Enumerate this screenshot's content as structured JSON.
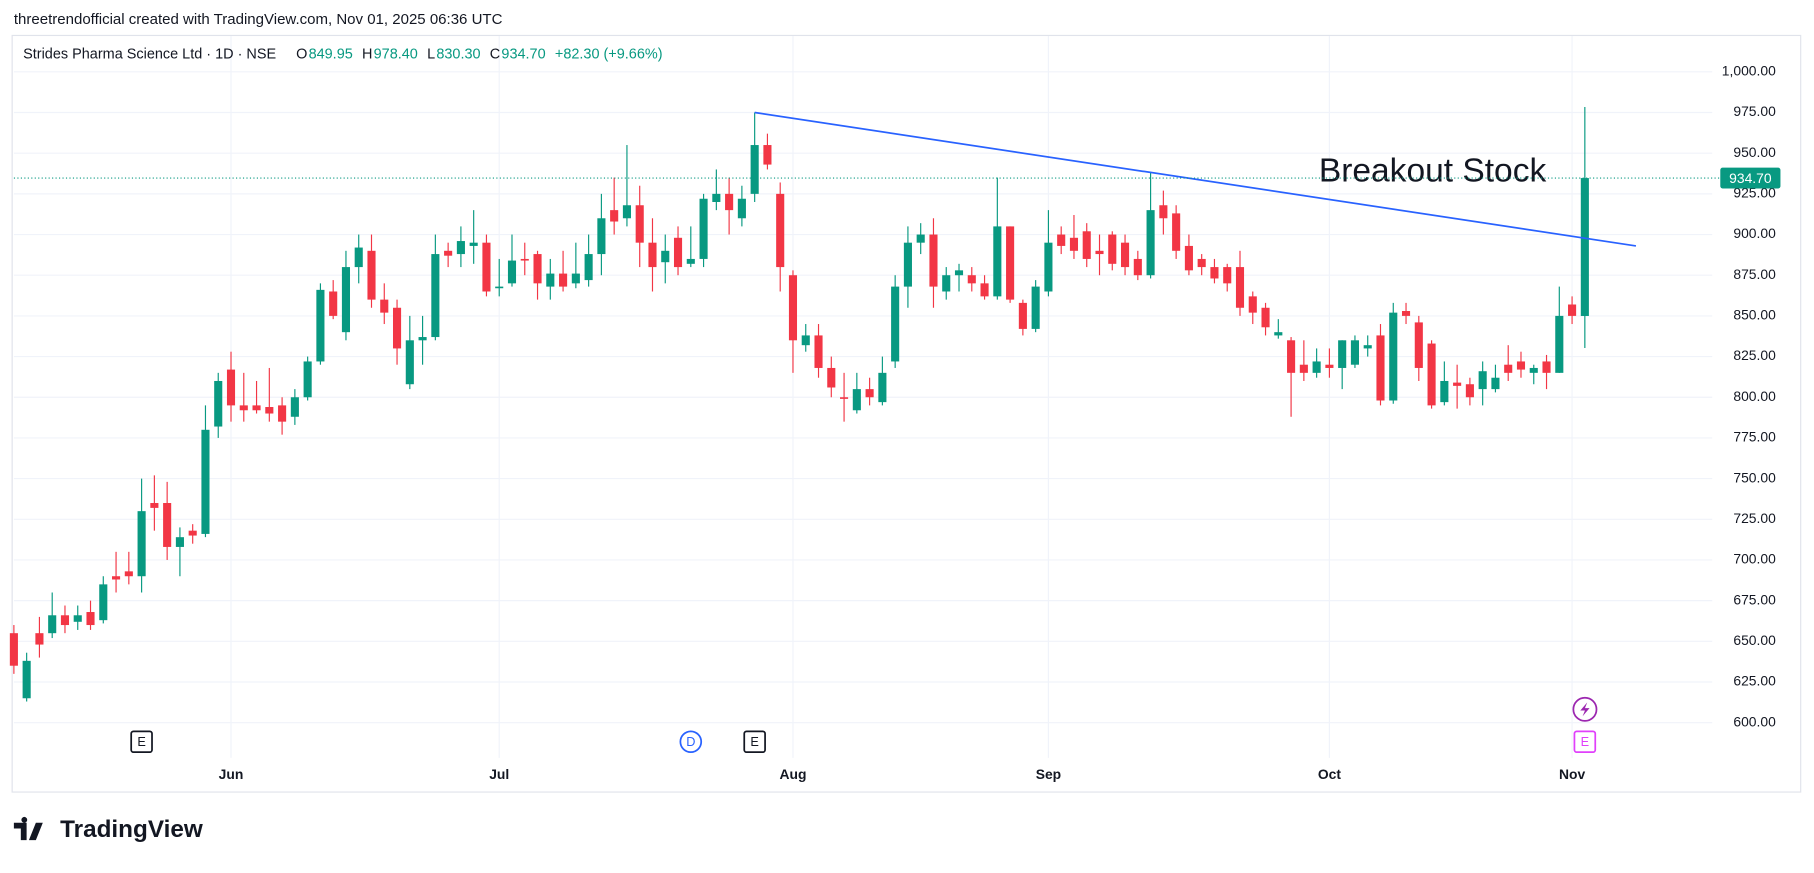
{
  "header": {
    "credit": "threetrendofficial created with TradingView.com, Nov 01, 2025 06:36 UTC",
    "logo": "TradingView"
  },
  "chart_data": {
    "type": "candlestick",
    "symbol": "Strides Pharma Science Ltd · 1D · NSE",
    "ohlc_keys": [
      "O",
      "H",
      "L",
      "C"
    ],
    "ohlc_labels": [
      "849.95",
      "978.40",
      "830.30",
      "934.70"
    ],
    "change_label": "+82.30 (+9.66%)",
    "last_price_label": "934.70",
    "up_color": "#089981",
    "down_color": "#f23645",
    "categories": [
      null,
      null,
      null,
      null,
      null,
      null,
      null,
      null,
      null,
      null,
      null,
      null,
      null,
      null,
      null,
      null,
      null,
      "Jun",
      null,
      null,
      null,
      null,
      null,
      null,
      null,
      null,
      null,
      null,
      null,
      null,
      null,
      null,
      null,
      null,
      null,
      null,
      null,
      null,
      "Jul",
      null,
      null,
      null,
      null,
      null,
      null,
      null,
      null,
      null,
      null,
      null,
      null,
      null,
      null,
      null,
      null,
      null,
      null,
      null,
      null,
      null,
      null,
      "Aug",
      null,
      null,
      null,
      null,
      null,
      null,
      null,
      null,
      null,
      null,
      null,
      null,
      null,
      null,
      null,
      null,
      null,
      null,
      null,
      "Sep",
      null,
      null,
      null,
      null,
      null,
      null,
      null,
      null,
      null,
      null,
      null,
      null,
      null,
      null,
      null,
      null,
      null,
      null,
      null,
      null,
      null,
      "Oct",
      null,
      null,
      null,
      null,
      null,
      null,
      null,
      null,
      null,
      null,
      null,
      null,
      null,
      null,
      null,
      null,
      null,
      null,
      "Nov"
    ],
    "ohlc": [
      [
        655,
        660,
        630,
        635
      ],
      [
        615,
        643,
        613,
        638
      ],
      [
        655,
        665,
        640,
        648
      ],
      [
        655,
        680,
        652,
        666
      ],
      [
        666,
        672,
        655,
        660
      ],
      [
        662,
        672,
        657,
        666
      ],
      [
        668,
        675,
        657,
        660
      ],
      [
        663,
        690,
        661,
        685
      ],
      [
        690,
        705,
        680,
        688
      ],
      [
        693,
        705,
        685,
        690
      ],
      [
        690,
        750,
        680,
        730
      ],
      [
        735,
        752,
        718,
        732
      ],
      [
        735,
        748,
        700,
        708
      ],
      [
        708,
        720,
        690,
        714
      ],
      [
        718,
        722,
        710,
        715
      ],
      [
        716,
        795,
        714,
        780
      ],
      [
        782,
        815,
        775,
        810
      ],
      [
        817,
        828,
        785,
        795
      ],
      [
        795,
        815,
        785,
        792
      ],
      [
        795,
        810,
        790,
        792
      ],
      [
        794,
        818,
        785,
        790
      ],
      [
        795,
        800,
        777,
        785
      ],
      [
        788,
        805,
        783,
        800
      ],
      [
        800,
        825,
        798,
        822
      ],
      [
        822,
        870,
        820,
        866
      ],
      [
        865,
        872,
        848,
        850
      ],
      [
        840,
        890,
        835,
        880
      ],
      [
        880,
        900,
        870,
        892
      ],
      [
        890,
        900,
        855,
        860
      ],
      [
        860,
        870,
        845,
        852
      ],
      [
        855,
        860,
        820,
        830
      ],
      [
        808,
        850,
        805,
        835
      ],
      [
        835,
        850,
        820,
        837
      ],
      [
        837,
        900,
        835,
        888
      ],
      [
        890,
        895,
        880,
        887
      ],
      [
        888,
        905,
        880,
        896
      ],
      [
        893,
        915,
        882,
        895
      ],
      [
        895,
        900,
        862,
        865
      ],
      [
        867,
        885,
        862,
        868
      ],
      [
        870,
        900,
        868,
        884
      ],
      [
        885,
        895,
        875,
        884
      ],
      [
        888,
        890,
        860,
        870
      ],
      [
        868,
        885,
        860,
        876
      ],
      [
        876,
        890,
        865,
        868
      ],
      [
        870,
        895,
        867,
        876
      ],
      [
        872,
        900,
        868,
        888
      ],
      [
        888,
        925,
        875,
        910
      ],
      [
        915,
        935,
        900,
        908
      ],
      [
        910,
        955,
        905,
        918
      ],
      [
        918,
        930,
        880,
        895
      ],
      [
        895,
        910,
        865,
        880
      ],
      [
        883,
        900,
        870,
        890
      ],
      [
        898,
        905,
        875,
        880
      ],
      [
        882,
        905,
        880,
        885
      ],
      [
        885,
        925,
        880,
        922
      ],
      [
        920,
        940,
        915,
        925
      ],
      [
        925,
        935,
        900,
        915
      ],
      [
        910,
        930,
        905,
        922
      ],
      [
        925,
        975,
        920,
        955
      ],
      [
        955,
        962,
        940,
        943
      ],
      [
        925,
        932,
        865,
        880
      ],
      [
        875,
        878,
        815,
        835
      ],
      [
        832,
        845,
        828,
        838
      ],
      [
        838,
        845,
        812,
        818
      ],
      [
        818,
        825,
        800,
        806
      ],
      [
        800,
        815,
        785,
        799
      ],
      [
        792,
        815,
        790,
        805
      ],
      [
        805,
        812,
        795,
        800
      ],
      [
        797,
        825,
        795,
        815
      ],
      [
        822,
        875,
        818,
        868
      ],
      [
        868,
        905,
        855,
        895
      ],
      [
        895,
        907,
        888,
        900
      ],
      [
        900,
        910,
        855,
        868
      ],
      [
        865,
        880,
        860,
        875
      ],
      [
        875,
        882,
        865,
        878
      ],
      [
        875,
        880,
        865,
        870
      ],
      [
        870,
        875,
        860,
        862
      ],
      [
        862,
        935,
        860,
        905
      ],
      [
        905,
        905,
        858,
        860
      ],
      [
        858,
        860,
        838,
        842
      ],
      [
        842,
        872,
        840,
        868
      ],
      [
        865,
        915,
        862,
        895
      ],
      [
        900,
        905,
        888,
        893
      ],
      [
        898,
        912,
        885,
        890
      ],
      [
        902,
        907,
        880,
        885
      ],
      [
        890,
        900,
        875,
        888
      ],
      [
        900,
        902,
        878,
        882
      ],
      [
        895,
        900,
        875,
        880
      ],
      [
        885,
        890,
        872,
        875
      ],
      [
        875,
        938,
        873,
        915
      ],
      [
        918,
        927,
        900,
        910
      ],
      [
        913,
        918,
        885,
        890
      ],
      [
        893,
        900,
        875,
        878
      ],
      [
        885,
        888,
        875,
        880
      ],
      [
        880,
        885,
        870,
        873
      ],
      [
        880,
        882,
        865,
        870
      ],
      [
        880,
        890,
        850,
        855
      ],
      [
        862,
        865,
        845,
        852
      ],
      [
        855,
        858,
        838,
        843
      ],
      [
        838,
        848,
        836,
        840
      ],
      [
        835,
        837,
        788,
        815
      ],
      [
        820,
        835,
        810,
        815
      ],
      [
        815,
        830,
        812,
        822
      ],
      [
        820,
        830,
        812,
        818
      ],
      [
        818,
        835,
        805,
        835
      ],
      [
        820,
        838,
        818,
        835
      ],
      [
        830,
        838,
        825,
        832
      ],
      [
        838,
        845,
        795,
        798
      ],
      [
        798,
        858,
        796,
        852
      ],
      [
        853,
        858,
        845,
        850
      ],
      [
        846,
        850,
        810,
        818
      ],
      [
        833,
        835,
        793,
        795
      ],
      [
        797,
        822,
        795,
        810
      ],
      [
        809,
        820,
        793,
        807
      ],
      [
        808,
        812,
        795,
        800
      ],
      [
        805,
        822,
        795,
        816
      ],
      [
        805,
        820,
        803,
        812
      ],
      [
        820,
        832,
        810,
        815
      ],
      [
        822,
        828,
        812,
        817
      ],
      [
        815,
        820,
        808,
        818
      ],
      [
        822,
        826,
        805,
        815
      ],
      [
        815,
        868,
        815,
        850
      ],
      [
        857,
        862,
        845,
        850
      ],
      [
        849.95,
        978.4,
        830.3,
        934.7
      ]
    ],
    "ylim": [
      557,
      1022
    ],
    "yticks": [
      {
        "value": 600,
        "label": "600.00"
      },
      {
        "value": 625,
        "label": "625.00"
      },
      {
        "value": 650,
        "label": "650.00"
      },
      {
        "value": 675,
        "label": "675.00"
      },
      {
        "value": 700,
        "label": "700.00"
      },
      {
        "value": 725,
        "label": "725.00"
      },
      {
        "value": 750,
        "label": "750.00"
      },
      {
        "value": 775,
        "label": "775.00"
      },
      {
        "value": 800,
        "label": "800.00"
      },
      {
        "value": 825,
        "label": "825.00"
      },
      {
        "value": 850,
        "label": "850.00"
      },
      {
        "value": 875,
        "label": "875.00"
      },
      {
        "value": 900,
        "label": "900.00"
      },
      {
        "value": 925,
        "label": "925.00"
      },
      {
        "value": 950,
        "label": "950.00"
      },
      {
        "value": 975,
        "label": "975.00"
      },
      {
        "value": 1000,
        "label": "1,000.00"
      }
    ],
    "grid": true,
    "trendline": {
      "x": [
        58,
        127
      ],
      "y": [
        975,
        893
      ],
      "color": "#2962ff"
    },
    "annotation": "Breakout Stock",
    "events": [
      {
        "label": "E",
        "index": 10,
        "color": "#131722"
      },
      {
        "label": "D",
        "index": 53,
        "color": "#2962ff"
      },
      {
        "label": "E",
        "index": 58,
        "color": "#131722"
      },
      {
        "label": "E",
        "index": 123,
        "color": "#e040fb"
      }
    ]
  }
}
